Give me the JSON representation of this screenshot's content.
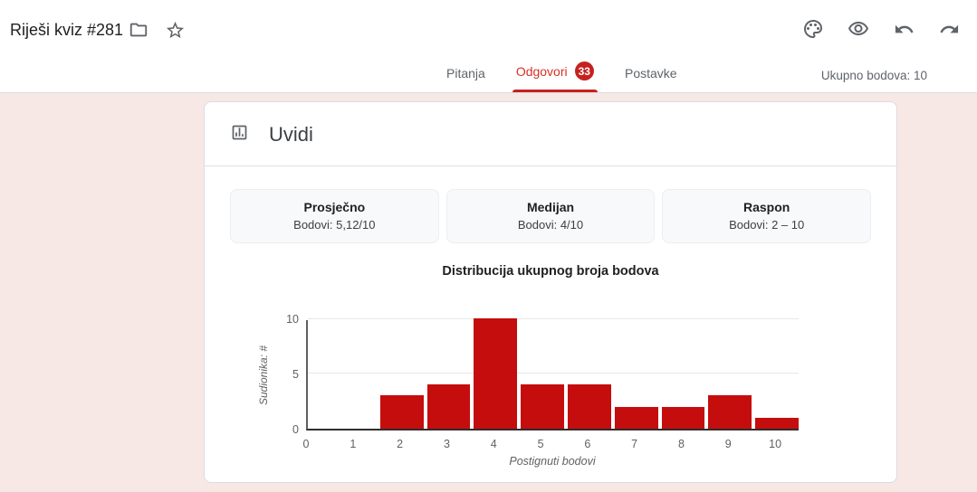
{
  "colors": {
    "accent": "#c5221f",
    "accent_text": "#d93025",
    "page_bg": "#f8e8e5",
    "bar": "#c50d0d"
  },
  "header": {
    "title": "Riješi kviz #281",
    "icons": [
      "folder-icon",
      "star-icon",
      "palette-icon",
      "preview-eye-icon",
      "undo-icon",
      "redo-icon"
    ],
    "total_points": "Ukupno bodova: 10"
  },
  "tabs": [
    {
      "label": "Pitanja",
      "active": false
    },
    {
      "label": "Odgovori",
      "badge": "33",
      "active": true
    },
    {
      "label": "Postavke",
      "active": false
    }
  ],
  "insights": {
    "title": "Uvidi",
    "icon": "insights-chart-icon",
    "stats": [
      {
        "title": "Prosječno",
        "value": "Bodovi: 5,12/10"
      },
      {
        "title": "Medijan",
        "value": "Bodovi: 4/10"
      },
      {
        "title": "Raspon",
        "value": "Bodovi: 2 – 10"
      }
    ]
  },
  "chart_data": {
    "type": "bar",
    "title": "Distribucija ukupnog broja bodova",
    "categories": [
      0,
      1,
      2,
      3,
      4,
      5,
      6,
      7,
      8,
      9,
      10
    ],
    "values": [
      0,
      0,
      3,
      4,
      10,
      4,
      4,
      2,
      2,
      3,
      1
    ],
    "xlabel": "Postignuti bodovi",
    "ylabel": "Sudionika: #",
    "ylim": [
      0,
      10
    ],
    "yticks": [
      0,
      5,
      10
    ],
    "grid": true,
    "legend": false,
    "bar_color": "#c50d0d"
  }
}
